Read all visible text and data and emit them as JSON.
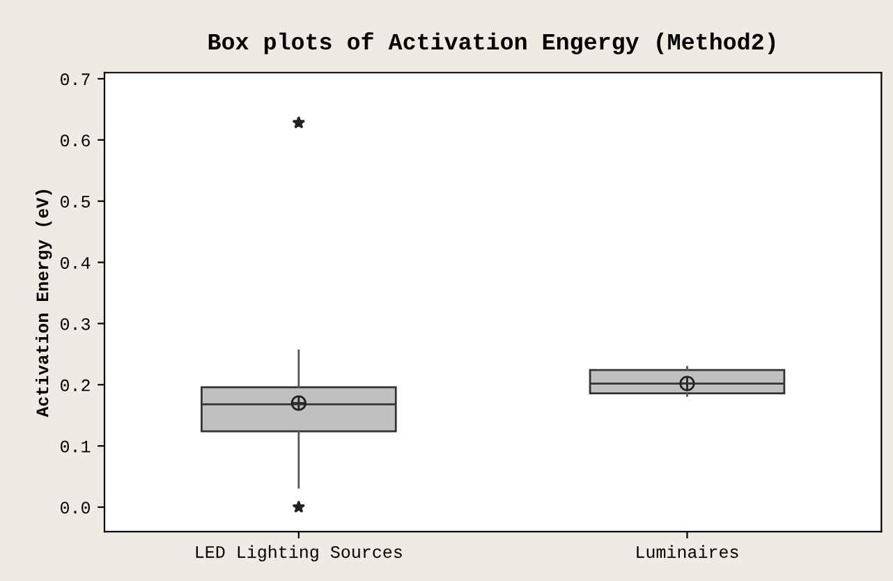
{
  "chart_data": {
    "type": "box",
    "title": "Box plots of Activation Engergy (Method2)",
    "ylabel": "Activation Energy (eV)",
    "categories": [
      "LED Lighting Sources",
      "Luminaires"
    ],
    "boxes": [
      {
        "low": 0.032,
        "q1": 0.124,
        "median": 0.168,
        "q3": 0.196,
        "high": 0.256,
        "mean": 0.17,
        "outliers": [
          0.628,
          0.0
        ]
      },
      {
        "low": 0.182,
        "q1": 0.186,
        "median": 0.202,
        "q3": 0.224,
        "high": 0.229,
        "mean": 0.202
      }
    ],
    "color": "#c0c0c0",
    "ylim": [
      -0.04,
      0.71
    ],
    "yticks": [
      {
        "value": 0,
        "label": "0.0"
      },
      0.1,
      0.2,
      0.3,
      0.4,
      0.5,
      0.6,
      0.7
    ],
    "grid": false,
    "legend": false
  }
}
